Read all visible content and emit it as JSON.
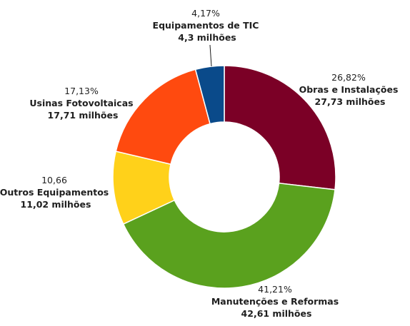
{
  "chart_data": {
    "type": "pie",
    "donut": true,
    "slices": [
      {
        "percent_label": "26,82%",
        "name": "Obras e Instalações",
        "value_label": "27,73 milhões",
        "percent": 26.82,
        "value": 27.73,
        "color": "#7b0026"
      },
      {
        "percent_label": "41,21%",
        "name": "Manutenções e Reformas",
        "value_label": "42,61 milhões",
        "percent": 41.21,
        "value": 42.61,
        "color": "#5aa11e"
      },
      {
        "percent_label": "10,66",
        "name": "Outros Equipamentos",
        "value_label": "11,02 milhões",
        "percent": 10.66,
        "value": 11.02,
        "color": "#ffd11a"
      },
      {
        "percent_label": "17,13%",
        "name": "Usinas Fotovoltaicas",
        "value_label": "17,71 milhões",
        "percent": 17.13,
        "value": 17.71,
        "color": "#ff4a0f"
      },
      {
        "percent_label": "4,17%",
        "name": "Equipamentos de TIC",
        "value_label": "4,3 milhões",
        "percent": 4.17,
        "value": 4.3,
        "color": "#0a4a8a"
      }
    ]
  }
}
